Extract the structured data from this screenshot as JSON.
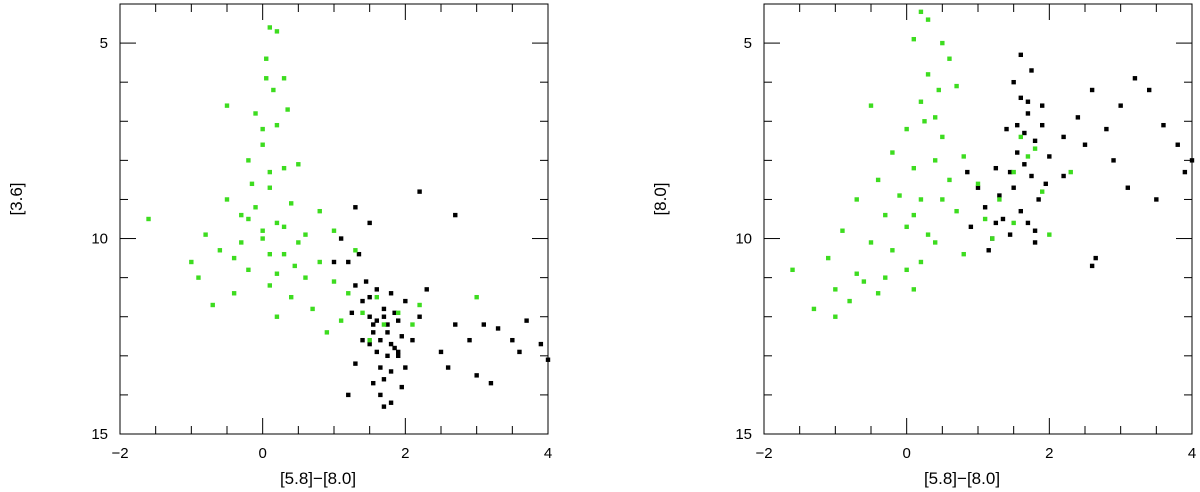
{
  "chart_data": [
    {
      "type": "scatter",
      "title": "",
      "xlabel": "[5.8]−[8.0]",
      "ylabel": "[3.6]",
      "xlim": [
        -2,
        4
      ],
      "ylim": [
        15,
        4
      ],
      "y_inverted": true,
      "x_ticks": [
        "−2",
        "0",
        "2",
        "4"
      ],
      "y_ticks": [
        "5",
        "10",
        "15"
      ],
      "grid": false,
      "legend": "none",
      "series": [
        {
          "color": "#000000",
          "marker": "square",
          "points": [
            [
              1.1,
              10.0
            ],
            [
              1.2,
              10.6
            ],
            [
              1.3,
              11.2
            ],
            [
              1.4,
              11.6
            ],
            [
              1.5,
              12.0
            ],
            [
              1.55,
              12.4
            ],
            [
              1.6,
              12.9
            ],
            [
              1.65,
              13.3
            ],
            [
              1.7,
              13.6
            ],
            [
              1.75,
              12.2
            ],
            [
              1.8,
              12.7
            ],
            [
              1.85,
              11.9
            ],
            [
              1.9,
              13.0
            ],
            [
              1.95,
              12.5
            ],
            [
              2.0,
              11.6
            ],
            [
              1.6,
              11.3
            ],
            [
              1.7,
              11.8
            ],
            [
              1.75,
              13.0
            ],
            [
              1.5,
              12.7
            ],
            [
              1.45,
              11.1
            ],
            [
              1.35,
              10.4
            ],
            [
              1.25,
              11.9
            ],
            [
              1.9,
              12.1
            ],
            [
              1.8,
              13.4
            ],
            [
              1.65,
              14.0
            ],
            [
              2.1,
              12.6
            ],
            [
              2.2,
              12.0
            ],
            [
              1.55,
              13.7
            ],
            [
              1.4,
              12.6
            ],
            [
              1.3,
              13.2
            ],
            [
              1.2,
              14.0
            ],
            [
              2.3,
              11.3
            ],
            [
              2.5,
              12.9
            ],
            [
              2.7,
              12.2
            ],
            [
              3.0,
              13.5
            ],
            [
              3.2,
              13.7
            ],
            [
              3.3,
              12.3
            ],
            [
              3.5,
              12.6
            ],
            [
              3.6,
              12.9
            ],
            [
              3.7,
              12.1
            ],
            [
              3.9,
              12.7
            ],
            [
              4.0,
              13.1
            ],
            [
              2.9,
              12.6
            ],
            [
              3.1,
              12.2
            ],
            [
              2.6,
              13.3
            ],
            [
              2.2,
              8.8
            ],
            [
              2.7,
              9.4
            ],
            [
              1.3,
              9.2
            ],
            [
              1.5,
              9.6
            ],
            [
              1.0,
              10.6
            ],
            [
              1.8,
              14.2
            ],
            [
              1.95,
              13.8
            ],
            [
              1.7,
              14.3
            ],
            [
              1.6,
              12.1
            ],
            [
              1.75,
              12.4
            ],
            [
              1.85,
              12.8
            ],
            [
              1.5,
              11.5
            ],
            [
              1.65,
              12.6
            ],
            [
              1.8,
              11.4
            ],
            [
              1.9,
              12.9
            ],
            [
              2.0,
              13.3
            ],
            [
              1.55,
              12.2
            ],
            [
              1.7,
              12.0
            ]
          ]
        },
        {
          "color": "#3ddc1f",
          "marker": "square",
          "points": [
            [
              0.1,
              4.6
            ],
            [
              0.2,
              4.7
            ],
            [
              0.05,
              5.4
            ],
            [
              0.3,
              5.9
            ],
            [
              0.15,
              6.2
            ],
            [
              -0.1,
              6.8
            ],
            [
              0.2,
              7.1
            ],
            [
              0.0,
              7.6
            ],
            [
              -0.2,
              8.0
            ],
            [
              0.3,
              8.2
            ],
            [
              0.1,
              8.7
            ],
            [
              -0.5,
              9.0
            ],
            [
              0.4,
              9.1
            ],
            [
              -0.3,
              9.4
            ],
            [
              0.2,
              9.6
            ],
            [
              -0.8,
              9.9
            ],
            [
              0.0,
              10.0
            ],
            [
              0.5,
              10.1
            ],
            [
              -0.6,
              10.3
            ],
            [
              0.3,
              10.4
            ],
            [
              -1.0,
              10.6
            ],
            [
              0.8,
              10.6
            ],
            [
              -0.2,
              10.8
            ],
            [
              0.6,
              11.0
            ],
            [
              -0.9,
              11.0
            ],
            [
              0.1,
              11.2
            ],
            [
              1.0,
              11.1
            ],
            [
              -0.4,
              11.4
            ],
            [
              0.4,
              11.5
            ],
            [
              1.2,
              11.4
            ],
            [
              -0.7,
              11.7
            ],
            [
              0.7,
              11.8
            ],
            [
              0.2,
              12.0
            ],
            [
              1.1,
              12.1
            ],
            [
              1.4,
              11.9
            ],
            [
              1.6,
              11.5
            ],
            [
              0.9,
              12.4
            ],
            [
              1.5,
              12.6
            ],
            [
              1.7,
              12.2
            ],
            [
              -1.6,
              9.5
            ],
            [
              -0.5,
              6.6
            ],
            [
              0.5,
              8.1
            ],
            [
              0.8,
              9.3
            ],
            [
              1.0,
              9.8
            ],
            [
              1.3,
              10.3
            ],
            [
              2.2,
              11.7
            ],
            [
              3.0,
              11.5
            ],
            [
              2.1,
              12.2
            ],
            [
              -0.1,
              9.2
            ],
            [
              0.0,
              9.8
            ],
            [
              0.1,
              10.4
            ],
            [
              -0.3,
              10.1
            ],
            [
              0.2,
              10.9
            ],
            [
              0.3,
              9.7
            ],
            [
              -0.2,
              9.5
            ],
            [
              0.1,
              8.3
            ],
            [
              0.0,
              7.2
            ],
            [
              0.35,
              6.7
            ],
            [
              0.05,
              5.9
            ],
            [
              -0.15,
              8.6
            ],
            [
              0.6,
              9.9
            ],
            [
              -0.4,
              10.5
            ],
            [
              0.45,
              10.7
            ],
            [
              1.9,
              11.9
            ]
          ]
        }
      ]
    },
    {
      "type": "scatter",
      "title": "",
      "xlabel": "[5.8]−[8.0]",
      "ylabel": "[8.0]",
      "xlim": [
        -2,
        4
      ],
      "ylim": [
        15,
        4
      ],
      "y_inverted": true,
      "x_ticks": [
        "−2",
        "0",
        "2",
        "4"
      ],
      "y_ticks": [
        "5",
        "10",
        "15"
      ],
      "grid": false,
      "legend": "none",
      "series": [
        {
          "color": "#000000",
          "marker": "square",
          "points": [
            [
              1.5,
              6.0
            ],
            [
              1.6,
              6.4
            ],
            [
              1.7,
              6.8
            ],
            [
              1.4,
              7.2
            ],
            [
              1.8,
              7.5
            ],
            [
              1.55,
              7.8
            ],
            [
              1.65,
              8.1
            ],
            [
              1.75,
              8.4
            ],
            [
              1.5,
              8.7
            ],
            [
              1.85,
              9.0
            ],
            [
              1.6,
              9.3
            ],
            [
              1.7,
              9.6
            ],
            [
              1.45,
              9.9
            ],
            [
              1.8,
              10.1
            ],
            [
              1.3,
              8.9
            ],
            [
              1.25,
              8.2
            ],
            [
              1.9,
              7.1
            ],
            [
              2.0,
              7.9
            ],
            [
              1.95,
              8.6
            ],
            [
              1.35,
              9.5
            ],
            [
              1.2,
              10.0
            ],
            [
              1.1,
              9.2
            ],
            [
              1.0,
              8.7
            ],
            [
              2.2,
              8.4
            ],
            [
              2.4,
              6.9
            ],
            [
              2.6,
              6.2
            ],
            [
              2.8,
              7.2
            ],
            [
              3.0,
              6.6
            ],
            [
              3.2,
              5.9
            ],
            [
              3.4,
              6.2
            ],
            [
              3.6,
              7.1
            ],
            [
              3.8,
              7.6
            ],
            [
              4.0,
              8.0
            ],
            [
              3.9,
              8.3
            ],
            [
              3.5,
              9.0
            ],
            [
              3.1,
              8.7
            ],
            [
              2.9,
              8.0
            ],
            [
              2.5,
              7.6
            ],
            [
              2.2,
              7.4
            ],
            [
              2.65,
              10.5
            ],
            [
              2.6,
              10.7
            ],
            [
              0.9,
              9.7
            ],
            [
              1.15,
              10.3
            ],
            [
              1.7,
              6.5
            ],
            [
              1.55,
              7.1
            ],
            [
              1.65,
              7.3
            ],
            [
              1.8,
              9.8
            ],
            [
              1.9,
              6.6
            ],
            [
              0.85,
              8.3
            ],
            [
              1.25,
              9.6
            ],
            [
              1.45,
              8.3
            ],
            [
              1.6,
              5.3
            ],
            [
              1.75,
              5.7
            ]
          ]
        },
        {
          "color": "#3ddc1f",
          "marker": "square",
          "points": [
            [
              0.2,
              4.2
            ],
            [
              0.3,
              4.4
            ],
            [
              0.1,
              4.9
            ],
            [
              0.5,
              5.0
            ],
            [
              0.6,
              5.4
            ],
            [
              0.3,
              5.8
            ],
            [
              0.7,
              6.1
            ],
            [
              0.2,
              6.5
            ],
            [
              0.4,
              6.9
            ],
            [
              -0.5,
              6.6
            ],
            [
              0.0,
              7.2
            ],
            [
              0.5,
              7.4
            ],
            [
              -0.2,
              7.8
            ],
            [
              0.8,
              7.9
            ],
            [
              0.1,
              8.2
            ],
            [
              -0.4,
              8.5
            ],
            [
              0.6,
              8.5
            ],
            [
              1.0,
              8.6
            ],
            [
              -0.7,
              9.0
            ],
            [
              0.2,
              9.0
            ],
            [
              -0.3,
              9.4
            ],
            [
              0.7,
              9.3
            ],
            [
              -0.9,
              9.8
            ],
            [
              0.0,
              9.7
            ],
            [
              1.1,
              9.5
            ],
            [
              -0.5,
              10.1
            ],
            [
              0.4,
              10.1
            ],
            [
              -1.1,
              10.5
            ],
            [
              0.2,
              10.6
            ],
            [
              -0.7,
              10.9
            ],
            [
              0.8,
              10.4
            ],
            [
              -0.3,
              11.0
            ],
            [
              -1.0,
              11.3
            ],
            [
              0.1,
              11.3
            ],
            [
              -0.8,
              11.6
            ],
            [
              -0.4,
              11.4
            ],
            [
              -1.3,
              11.8
            ],
            [
              -1.0,
              12.0
            ],
            [
              -1.6,
              10.8
            ],
            [
              1.3,
              9.0
            ],
            [
              1.5,
              8.3
            ],
            [
              1.7,
              7.9
            ],
            [
              1.9,
              8.8
            ],
            [
              1.2,
              10.0
            ],
            [
              1.5,
              9.6
            ],
            [
              2.3,
              8.3
            ],
            [
              2.0,
              9.9
            ],
            [
              -0.1,
              8.9
            ],
            [
              0.1,
              9.4
            ],
            [
              -0.2,
              10.3
            ],
            [
              0.3,
              9.9
            ],
            [
              0.5,
              9.0
            ],
            [
              0.0,
              10.8
            ],
            [
              0.4,
              8.0
            ],
            [
              0.25,
              7.0
            ],
            [
              0.45,
              6.2
            ],
            [
              -0.6,
              11.1
            ],
            [
              1.6,
              7.4
            ],
            [
              1.8,
              7.7
            ]
          ]
        }
      ]
    }
  ]
}
